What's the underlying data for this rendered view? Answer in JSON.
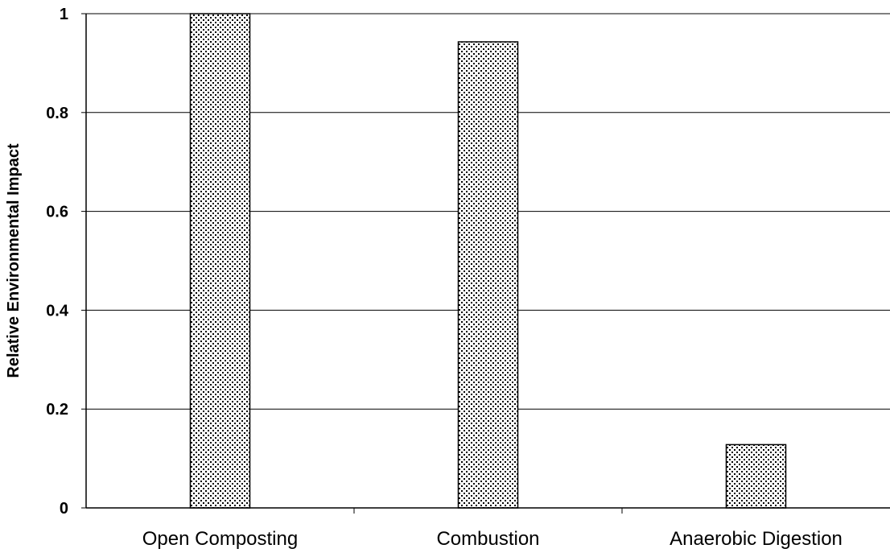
{
  "chart_data": {
    "type": "bar",
    "title": "",
    "xlabel": "",
    "ylabel": "Relative Environmental Impact",
    "categories": [
      "Open Composting",
      "Combustion",
      "Anaerobic Digestion"
    ],
    "values": [
      1.0,
      0.943,
      0.128
    ],
    "ylim": [
      0,
      1
    ],
    "yticks": [
      "0",
      "0.2",
      "0.4",
      "0.6",
      "0.8",
      "1"
    ],
    "grid": "horizontal",
    "legend": "none",
    "bar_fill": "dotted pattern",
    "colors": {
      "bar_fill": "#ffffff",
      "bar_dots": "#000000",
      "gridline": "#000000"
    }
  }
}
